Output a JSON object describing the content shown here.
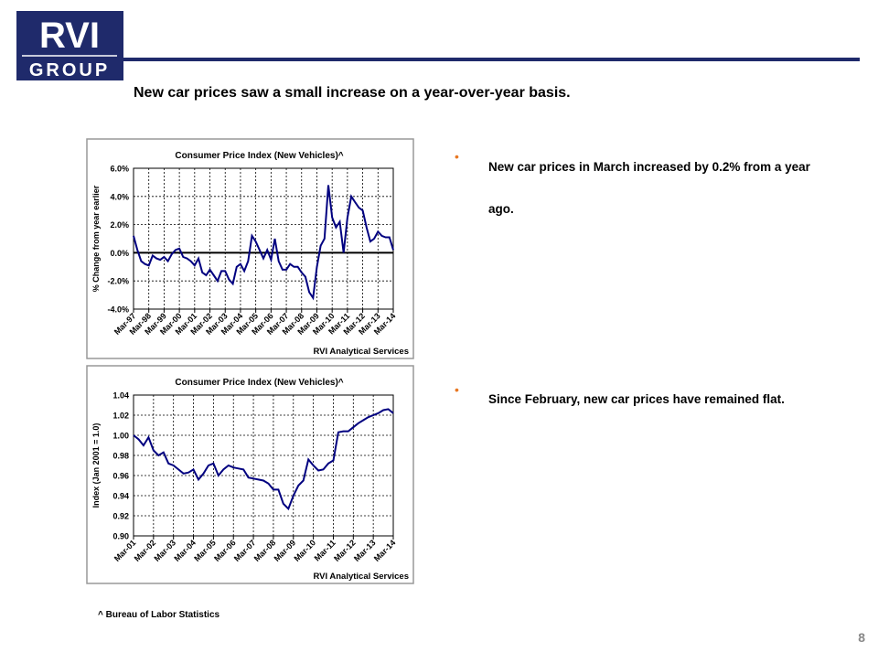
{
  "logo": {
    "top": "RVI",
    "bottom": "GROUP"
  },
  "title": "New car prices saw a small increase on a year-over-year basis.",
  "bullets": [
    "New car prices in March increased by 0.2% from a year ago.",
    "Since February, new car prices have remained flat."
  ],
  "footnote": "^ Bureau of Labor Statistics",
  "page_number": "8",
  "chart_data": [
    {
      "type": "line",
      "title": "Consumer Price Index (New Vehicles)^",
      "y_label": "% Change from year earlier",
      "source": "RVI Analytical Services",
      "color": "#000080",
      "grid": true,
      "categories": [
        "Mar-97",
        null,
        null,
        null,
        "Mar-98",
        null,
        null,
        null,
        "Mar-99",
        null,
        null,
        null,
        "Mar-00",
        null,
        null,
        null,
        "Mar-01",
        null,
        null,
        null,
        "Mar-02",
        null,
        null,
        null,
        "Mar-03",
        null,
        null,
        null,
        "Mar-04",
        null,
        null,
        null,
        "Mar-05",
        null,
        null,
        null,
        "Mar-06",
        null,
        null,
        null,
        "Mar-07",
        null,
        null,
        null,
        "Mar-08",
        null,
        null,
        null,
        "Mar-09",
        null,
        null,
        null,
        "Mar-10",
        null,
        null,
        null,
        "Mar-11",
        null,
        null,
        null,
        "Mar-12",
        null,
        null,
        null,
        "Mar-13",
        null,
        null,
        null,
        "Mar-14"
      ],
      "values": [
        1.2,
        0.2,
        -0.6,
        -0.8,
        -0.9,
        -0.2,
        -0.4,
        -0.5,
        -0.3,
        -0.6,
        -0.1,
        0.2,
        0.3,
        -0.3,
        -0.4,
        -0.6,
        -0.9,
        -0.4,
        -1.4,
        -1.6,
        -1.2,
        -1.6,
        -2.0,
        -1.3,
        -1.3,
        -1.9,
        -2.2,
        -1.0,
        -0.8,
        -1.3,
        -0.6,
        1.2,
        0.8,
        0.2,
        -0.4,
        0.2,
        -0.5,
        1.0,
        -0.6,
        -1.2,
        -1.2,
        -0.8,
        -1.0,
        -1.0,
        -1.4,
        -1.7,
        -2.8,
        -3.2,
        -1.0,
        0.5,
        1.0,
        4.8,
        2.5,
        1.8,
        2.2,
        0.0,
        2.5,
        4.0,
        3.6,
        3.2,
        3.0,
        1.8,
        0.8,
        1.0,
        1.5,
        1.2,
        1.1,
        1.1,
        0.2
      ],
      "ylim": [
        -4,
        6
      ],
      "yticks": [
        {
          "value": -4,
          "label": "-4.0%"
        },
        {
          "value": -2,
          "label": "-2.0%"
        },
        {
          "value": 0,
          "label": "0.0%"
        },
        {
          "value": 2,
          "label": "2.0%"
        },
        {
          "value": 4,
          "label": "4.0%"
        },
        {
          "value": 6,
          "label": "6.0%"
        }
      ]
    },
    {
      "type": "line",
      "title": "Consumer Price Index (New Vehicles)^",
      "y_label": "Index (Jan 2001 = 1.0)",
      "source": "RVI Analytical Services",
      "color": "#000080",
      "grid": true,
      "categories": [
        "Mar-01",
        null,
        null,
        null,
        "Mar-02",
        null,
        null,
        null,
        "Mar-03",
        null,
        null,
        null,
        "Mar-04",
        null,
        null,
        null,
        "Mar-05",
        null,
        null,
        null,
        "Mar-06",
        null,
        null,
        null,
        "Mar-07",
        null,
        null,
        null,
        "Mar-08",
        null,
        null,
        null,
        "Mar-09",
        null,
        null,
        null,
        "Mar-10",
        null,
        null,
        null,
        "Mar-11",
        null,
        null,
        null,
        "Mar-12",
        null,
        null,
        null,
        "Mar-13",
        null,
        null,
        null,
        "Mar-14"
      ],
      "values": [
        1.0,
        0.996,
        0.99,
        0.998,
        0.985,
        0.98,
        0.983,
        0.972,
        0.97,
        0.966,
        0.962,
        0.963,
        0.966,
        0.956,
        0.962,
        0.97,
        0.972,
        0.96,
        0.966,
        0.97,
        0.968,
        0.967,
        0.966,
        0.958,
        0.957,
        0.956,
        0.955,
        0.952,
        0.946,
        0.946,
        0.932,
        0.927,
        0.94,
        0.95,
        0.955,
        0.976,
        0.97,
        0.965,
        0.966,
        0.972,
        0.975,
        1.003,
        1.004,
        1.004,
        1.008,
        1.012,
        1.015,
        1.018,
        1.02,
        1.022,
        1.025,
        1.026,
        1.022
      ],
      "ylim": [
        0.9,
        1.04
      ],
      "yticks": [
        {
          "value": 0.9,
          "label": "0.90"
        },
        {
          "value": 0.92,
          "label": "0.92"
        },
        {
          "value": 0.94,
          "label": "0.94"
        },
        {
          "value": 0.96,
          "label": "0.96"
        },
        {
          "value": 0.98,
          "label": "0.98"
        },
        {
          "value": 1.0,
          "label": "1.00"
        },
        {
          "value": 1.02,
          "label": "1.02"
        },
        {
          "value": 1.04,
          "label": "1.04"
        }
      ]
    }
  ]
}
